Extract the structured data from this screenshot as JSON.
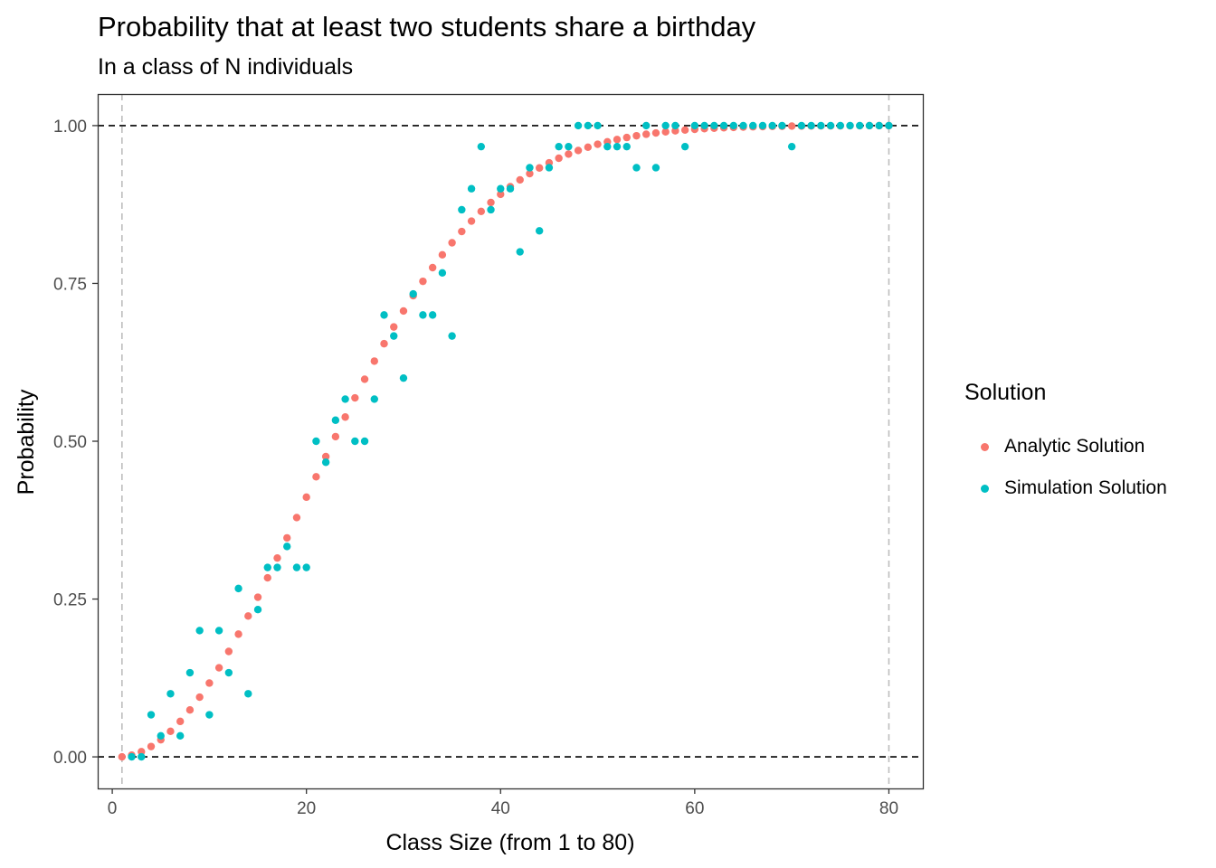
{
  "chart_data": {
    "type": "scatter",
    "title": "Probability that at least two students share a birthday",
    "subtitle": "In a class of N individuals",
    "xlabel": "Class Size (from 1 to 80)",
    "ylabel": "Probability",
    "xlim": [
      -1.5,
      83.5
    ],
    "ylim": [
      -0.05,
      1.05
    ],
    "x_ticks": [
      0,
      20,
      40,
      60,
      80
    ],
    "x_tick_labels": [
      "0",
      "20",
      "40",
      "60",
      "80"
    ],
    "y_ticks": [
      0,
      0.25,
      0.5,
      0.75,
      1
    ],
    "y_tick_labels": [
      "0.00",
      "0.25",
      "0.50",
      "0.75",
      "1.00"
    ],
    "hlines": [
      0,
      1
    ],
    "vlines": [
      1,
      80
    ],
    "grid": false,
    "legend": {
      "title": "Solution",
      "position": "right"
    },
    "series": [
      {
        "name": "Analytic Solution",
        "color": "#F8766D",
        "x": [
          1,
          2,
          3,
          4,
          5,
          6,
          7,
          8,
          9,
          10,
          11,
          12,
          13,
          14,
          15,
          16,
          17,
          18,
          19,
          20,
          21,
          22,
          23,
          24,
          25,
          26,
          27,
          28,
          29,
          30,
          31,
          32,
          33,
          34,
          35,
          36,
          37,
          38,
          39,
          40,
          41,
          42,
          43,
          44,
          45,
          46,
          47,
          48,
          49,
          50,
          51,
          52,
          53,
          54,
          55,
          56,
          57,
          58,
          59,
          60,
          61,
          62,
          63,
          64,
          65,
          66,
          67,
          68,
          69,
          70,
          71,
          72,
          73,
          74,
          75,
          76,
          77,
          78,
          79,
          80
        ],
        "y": [
          0,
          0.0027,
          0.0082,
          0.0164,
          0.0271,
          0.0405,
          0.0562,
          0.0743,
          0.0946,
          0.1169,
          0.1411,
          0.167,
          0.1944,
          0.2231,
          0.2529,
          0.2836,
          0.315,
          0.3469,
          0.3791,
          0.4114,
          0.4437,
          0.4757,
          0.5073,
          0.5383,
          0.5687,
          0.5982,
          0.6269,
          0.6545,
          0.681,
          0.7063,
          0.7305,
          0.7533,
          0.775,
          0.7953,
          0.8144,
          0.8322,
          0.8487,
          0.8641,
          0.8782,
          0.8912,
          0.9032,
          0.914,
          0.9239,
          0.9329,
          0.941,
          0.9483,
          0.9548,
          0.9606,
          0.9658,
          0.9704,
          0.9744,
          0.978,
          0.9811,
          0.9839,
          0.9863,
          0.9883,
          0.9901,
          0.9917,
          0.993,
          0.9941,
          0.9951,
          0.9959,
          0.9966,
          0.9972,
          0.9977,
          0.9981,
          0.9984,
          0.9987,
          0.9989,
          0.9992,
          0.9993,
          0.9995,
          0.9996,
          0.9996,
          0.9997,
          0.9998,
          0.9998,
          0.9999,
          0.9999,
          0.9999
        ]
      },
      {
        "name": "Simulation Solution",
        "color": "#00BFC4",
        "x": [
          2,
          3,
          4,
          5,
          6,
          7,
          8,
          9,
          10,
          11,
          12,
          13,
          14,
          15,
          16,
          17,
          18,
          19,
          20,
          21,
          22,
          23,
          24,
          25,
          26,
          27,
          28,
          29,
          30,
          31,
          32,
          33,
          34,
          35,
          36,
          37,
          38,
          39,
          40,
          41,
          42,
          43,
          44,
          45,
          46,
          47,
          48,
          49,
          50,
          51,
          52,
          53,
          54,
          55,
          56,
          57,
          58,
          59,
          60,
          61,
          62,
          63,
          64,
          65,
          66,
          67,
          68,
          69,
          70,
          71,
          72,
          73,
          74,
          75,
          76,
          77,
          78,
          79,
          80
        ],
        "y": [
          0,
          0,
          0.0667,
          0.0333,
          0.1,
          0.0333,
          0.1333,
          0.2,
          0.0667,
          0.2,
          0.1333,
          0.2667,
          0.1,
          0.2333,
          0.3,
          0.3,
          0.3333,
          0.3,
          0.3,
          0.5,
          0.4667,
          0.5333,
          0.5667,
          0.5,
          0.5,
          0.5667,
          0.7,
          0.6667,
          0.6,
          0.7333,
          0.7,
          0.7,
          0.7667,
          0.6667,
          0.8667,
          0.9,
          0.9667,
          0.8667,
          0.9,
          0.9,
          0.8,
          0.9333,
          0.8333,
          0.9333,
          0.9667,
          0.9667,
          1,
          1,
          1,
          0.9667,
          0.9667,
          0.9667,
          0.9333,
          1,
          0.9333,
          1,
          1,
          0.9667,
          1,
          1,
          1,
          1,
          1,
          1,
          1,
          1,
          1,
          1,
          0.9667,
          1,
          1,
          1,
          1,
          1,
          1,
          1,
          1,
          1,
          1
        ]
      }
    ]
  }
}
